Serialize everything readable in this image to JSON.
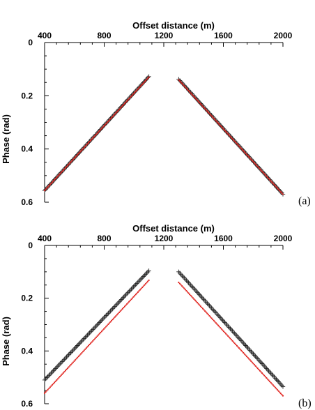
{
  "chart_data": [
    {
      "type": "scatter",
      "panel_label": "(a)",
      "xlabel": "Offset distance (m)",
      "ylabel": "Phase (rad)",
      "xlim": [
        400,
        2000
      ],
      "ylim": [
        0,
        0.6
      ],
      "y_inverted": true,
      "x_axis_position": "top",
      "x_ticks": [
        400,
        800,
        1200,
        1600,
        2000
      ],
      "x_tick_labels": [
        "400",
        "800",
        "1200",
        "1600",
        "2000"
      ],
      "y_ticks": [
        0,
        0.2,
        0.4,
        0.6
      ],
      "y_tick_labels": [
        "0",
        "0.2",
        "0.4",
        "0.6"
      ],
      "x_minor_step": 80,
      "y_minor_step": 0.05,
      "grid": false,
      "series": [
        {
          "marker": "plus",
          "color": "#222222",
          "segments": [
            {
              "x_start": 400,
              "x_end": 1100,
              "y_start": 0.556,
              "y_end": 0.128
            },
            {
              "x_start": 1300,
              "x_end": 2000,
              "y_start": 0.138,
              "y_end": 0.57
            }
          ]
        },
        {
          "marker": "dot",
          "color": "#e0201b",
          "segments": [
            {
              "x_start": 400,
              "x_end": 1100,
              "y_start": 0.556,
              "y_end": 0.13
            },
            {
              "x_start": 1300,
              "x_end": 2000,
              "y_start": 0.14,
              "y_end": 0.57
            }
          ]
        }
      ]
    },
    {
      "type": "scatter",
      "panel_label": "(b)",
      "xlabel": "Offset distance (m)",
      "ylabel": "Phase (rad)",
      "xlim": [
        400,
        2000
      ],
      "ylim": [
        0,
        0.6
      ],
      "y_inverted": true,
      "x_axis_position": "top",
      "x_ticks": [
        400,
        800,
        1200,
        1600,
        2000
      ],
      "x_tick_labels": [
        "400",
        "800",
        "1200",
        "1600",
        "2000"
      ],
      "y_ticks": [
        0,
        0.2,
        0.4,
        0.6
      ],
      "y_tick_labels": [
        "0",
        "0.2",
        "0.4",
        "0.6"
      ],
      "x_minor_step": 80,
      "y_minor_step": 0.05,
      "grid": false,
      "series": [
        {
          "marker": "plus",
          "color": "#222222",
          "segments": [
            {
              "x_start": 400,
              "x_end": 1100,
              "y_start": 0.51,
              "y_end": 0.096
            },
            {
              "x_start": 1300,
              "x_end": 2000,
              "y_start": 0.1,
              "y_end": 0.535
            }
          ]
        },
        {
          "marker": "dot",
          "color": "#e0201b",
          "segments": [
            {
              "x_start": 400,
              "x_end": 1100,
              "y_start": 0.56,
              "y_end": 0.132
            },
            {
              "x_start": 1300,
              "x_end": 2000,
              "y_start": 0.14,
              "y_end": 0.57
            }
          ]
        }
      ]
    }
  ]
}
